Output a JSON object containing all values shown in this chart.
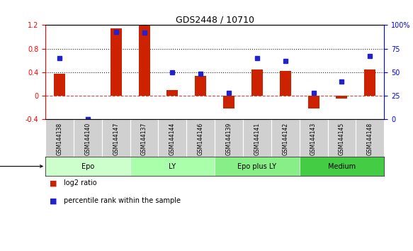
{
  "title": "GDS2448 / 10710",
  "samples": [
    "GSM144138",
    "GSM144140",
    "GSM144147",
    "GSM144137",
    "GSM144144",
    "GSM144146",
    "GSM144139",
    "GSM144141",
    "GSM144142",
    "GSM144143",
    "GSM144145",
    "GSM144148"
  ],
  "log2_ratio": [
    0.37,
    0.0,
    1.15,
    1.2,
    0.1,
    0.34,
    -0.22,
    0.45,
    0.42,
    -0.22,
    -0.05,
    0.45
  ],
  "percentile_rank": [
    65,
    0,
    93,
    92,
    50,
    48,
    28,
    65,
    62,
    28,
    40,
    67
  ],
  "bar_color": "#cc2200",
  "dot_color": "#2222cc",
  "hline_color": "#cc4444",
  "dotline_color": "#222222",
  "ylim_left": [
    -0.4,
    1.2
  ],
  "ylim_right": [
    0,
    100
  ],
  "yticks_left": [
    -0.4,
    0.0,
    0.4,
    0.8,
    1.2
  ],
  "yticks_right": [
    0,
    25,
    50,
    75,
    100
  ],
  "yticklabels_right": [
    "0",
    "25",
    "50",
    "75",
    "100%"
  ],
  "group_boundaries": [
    {
      "name": "Epo",
      "start": 0,
      "end": 2,
      "color": "#ccffcc"
    },
    {
      "name": "LY",
      "start": 3,
      "end": 5,
      "color": "#aaffaa"
    },
    {
      "name": "Epo plus LY",
      "start": 6,
      "end": 8,
      "color": "#88ee88"
    },
    {
      "name": "Medium",
      "start": 9,
      "end": 11,
      "color": "#44cc44"
    }
  ]
}
